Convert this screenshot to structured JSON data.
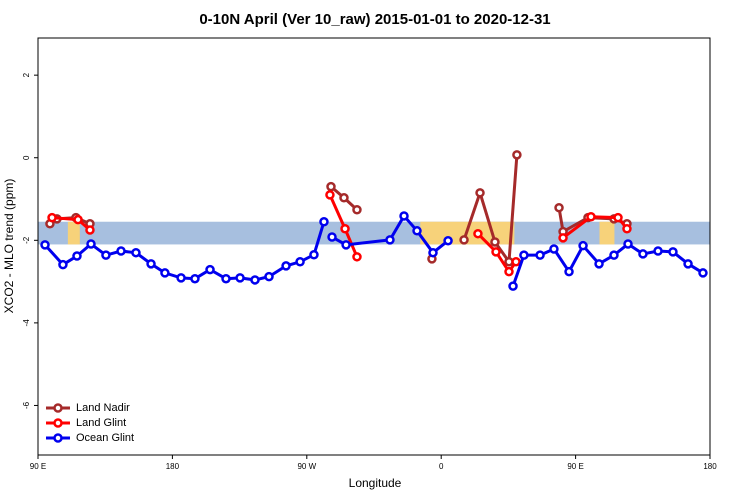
{
  "chart_data": {
    "type": "line",
    "title": "0-10N April (Ver 10_raw)   2015-01-01 to 2020-12-31",
    "x_label": "Longitude",
    "y_label": "XCO2 - MLO trend (ppm)",
    "xlim": [
      90,
      540
    ],
    "xticks": [
      {
        "value": 90,
        "label": "90 E"
      },
      180,
      {
        "value": 270,
        "label": "90 W"
      },
      {
        "value": 360,
        "label": "0"
      },
      {
        "value": 450,
        "label": "90 E"
      },
      {
        "value": 540,
        "label": "180"
      }
    ],
    "ylim": [
      -7.2,
      2.9
    ],
    "yticks": [
      2,
      0,
      -2,
      -4,
      -6
    ],
    "band": {
      "ylim": [
        -2.1,
        -1.55
      ],
      "color": "#a7bfdf"
    },
    "land": {
      "color": "#f7d27a",
      "x": [
        [
          110,
          118
        ],
        [
          346,
          409
        ],
        [
          466,
          476
        ]
      ]
    },
    "legend": "bottom-left",
    "series": [
      {
        "name": "Land Nadir",
        "color": "#a52a2a",
        "x": [
          98.0,
          102.7,
          115.4,
          124.8,
          null,
          286.2,
          294.9,
          303.6,
          null,
          353.8,
          null,
          375.3,
          386.0,
          396.0,
          405.4,
          410.7,
          null,
          438.9,
          441.6,
          458.3,
          475.7,
          484.4
        ],
        "values": [
          -1.6,
          -1.48,
          -1.45,
          -1.6,
          null,
          -0.7,
          -0.97,
          -1.26,
          null,
          -2.45,
          null,
          -1.99,
          -0.85,
          -2.04,
          -2.52,
          0.07,
          null,
          -1.21,
          -1.79,
          -1.45,
          -1.48,
          -1.6
        ]
      },
      {
        "name": "Land Glint",
        "color": "#ff0000",
        "x": [
          99.4,
          116.8,
          124.8,
          null,
          285.5,
          295.6,
          303.6,
          null,
          384.6,
          396.7,
          405.4,
          410.1,
          null,
          441.6,
          460.3,
          478.4,
          484.4
        ],
        "values": [
          -1.45,
          -1.5,
          -1.75,
          null,
          -0.9,
          -1.72,
          -2.4,
          null,
          -1.84,
          -2.28,
          -2.76,
          -2.52,
          null,
          -1.94,
          -1.43,
          -1.45,
          -1.72
        ]
      },
      {
        "name": "Ocean Glint",
        "color": "#0000ee",
        "x": [
          94.7,
          106.7,
          116.1,
          125.5,
          135.5,
          145.6,
          155.6,
          165.7,
          175.0,
          185.8,
          195.1,
          205.2,
          215.9,
          225.3,
          235.3,
          244.7,
          256.1,
          265.5,
          274.8,
          281.5,
          null,
          286.9,
          296.3,
          325.7,
          335.1,
          343.8,
          354.5,
          364.6,
          null,
          408.1,
          415.4,
          426.2,
          435.5,
          445.6,
          455.0,
          465.7,
          475.7,
          485.1,
          495.1,
          505.2,
          515.2,
          525.3,
          535.3
        ],
        "values": [
          -2.11,
          -2.59,
          -2.38,
          -2.09,
          -2.36,
          -2.26,
          -2.3,
          -2.57,
          -2.79,
          -2.91,
          -2.93,
          -2.71,
          -2.93,
          -2.91,
          -2.96,
          -2.88,
          -2.62,
          -2.52,
          -2.35,
          -1.55,
          null,
          -1.92,
          -2.11,
          -1.99,
          -1.41,
          -1.77,
          -2.3,
          -2.01,
          null,
          -3.11,
          -2.36,
          -2.36,
          -2.21,
          -2.76,
          -2.13,
          -2.57,
          -2.36,
          -2.09,
          -2.33,
          -2.26,
          -2.28,
          -2.57,
          -2.79
        ]
      }
    ]
  }
}
